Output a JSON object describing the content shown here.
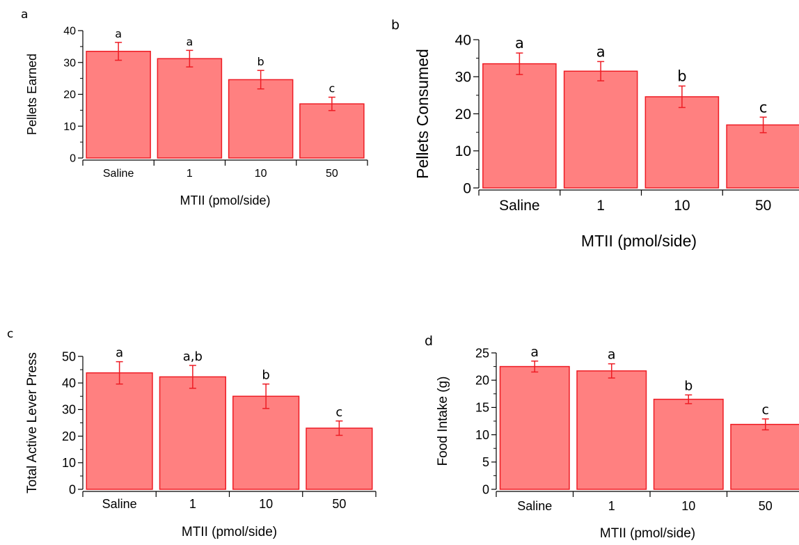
{
  "colors": {
    "bar_fill": "#ff8080",
    "bar_stroke": "#ee1c24",
    "error_bar": "#ee1c24",
    "axis": "#000000"
  },
  "chart_data": [
    {
      "panel": "a",
      "type": "bar",
      "categories": [
        "Saline",
        "1",
        "10",
        "50"
      ],
      "values": [
        33.5,
        31.2,
        24.6,
        17.0
      ],
      "errors": [
        2.8,
        2.6,
        2.9,
        2.1
      ],
      "significance": [
        "a",
        "a",
        "b",
        "c"
      ],
      "xlabel": "MTII (pmol/side)",
      "ylabel": "Pellets Earned",
      "ylim": [
        0,
        40
      ],
      "yticks": [
        0,
        10,
        20,
        30,
        40
      ],
      "grid": false,
      "legend": "none"
    },
    {
      "panel": "b",
      "type": "bar",
      "categories": [
        "Saline",
        "1",
        "10",
        "50"
      ],
      "values": [
        33.5,
        31.5,
        24.6,
        17.0
      ],
      "errors": [
        2.9,
        2.6,
        2.9,
        2.1
      ],
      "significance": [
        "a",
        "a",
        "b",
        "c"
      ],
      "xlabel": "MTII (pmol/side)",
      "ylabel": "Pellets Consumed",
      "ylim": [
        0,
        40
      ],
      "yticks": [
        0,
        10,
        20,
        30,
        40
      ],
      "grid": false,
      "legend": "none"
    },
    {
      "panel": "c",
      "type": "bar",
      "categories": [
        "Saline",
        "1",
        "10",
        "50"
      ],
      "values": [
        43.8,
        42.3,
        35.0,
        23.0
      ],
      "errors": [
        4.2,
        4.3,
        4.6,
        2.7
      ],
      "significance": [
        "a",
        "a,b",
        "b",
        "c"
      ],
      "xlabel": "MTII (pmol/side)",
      "ylabel": "Total Active Lever Press",
      "ylim": [
        0,
        50
      ],
      "yticks": [
        0,
        10,
        20,
        30,
        40,
        50
      ],
      "grid": false,
      "legend": "none"
    },
    {
      "panel": "d",
      "type": "bar",
      "categories": [
        "Saline",
        "1",
        "10",
        "50"
      ],
      "values": [
        22.5,
        21.7,
        16.5,
        11.9
      ],
      "errors": [
        1.0,
        1.3,
        0.8,
        1.0
      ],
      "significance": [
        "a",
        "a",
        "b",
        "c"
      ],
      "xlabel": "MTII (pmol/side)",
      "ylabel": "Food Intake (g)",
      "ylim": [
        0,
        25
      ],
      "yticks": [
        0,
        5,
        10,
        15,
        20,
        25
      ],
      "grid": false,
      "legend": "none"
    }
  ]
}
